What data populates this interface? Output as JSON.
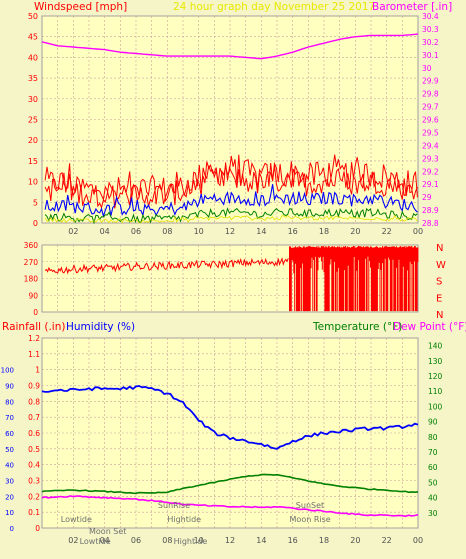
{
  "header": {
    "left_label": "Windspeed [mph]",
    "title": "24 hour graph day   November 25 2017",
    "right_label": "Barometer [.in]"
  },
  "colors": {
    "background": "#f5f5c8",
    "plot_bg": "#ffffc0",
    "grid": "#c8a0a0",
    "wind_red": "#ff0000",
    "wind_blue": "#0000ff",
    "wind_green": "#008000",
    "wind_yellow": "#e0e000",
    "barometer": "#ff00ff",
    "rain_axis": "#ff0000",
    "humidity_axis": "#0000ff",
    "temp_axis": "#008000",
    "dew_axis": "#ff00ff"
  },
  "chart_data": [
    {
      "type": "line",
      "name": "wind-barometer",
      "x": [
        0,
        1,
        2,
        3,
        4,
        5,
        6,
        7,
        8,
        9,
        10,
        11,
        12,
        13,
        14,
        15,
        16,
        17,
        18,
        19,
        20,
        21,
        22,
        23,
        24
      ],
      "xticks": [
        "02",
        "04",
        "06",
        "08",
        "10",
        "12",
        "14",
        "16",
        "18",
        "20",
        "22",
        "00"
      ],
      "xtick_hours": [
        2,
        4,
        6,
        8,
        10,
        12,
        14,
        16,
        18,
        20,
        22,
        24
      ],
      "ylim_left": [
        0,
        50
      ],
      "yticks_left": [
        0,
        5,
        10,
        15,
        20,
        25,
        30,
        35,
        40,
        45,
        50
      ],
      "ylim_right": [
        28.8,
        30.4
      ],
      "yticks_right": [
        "28.8",
        "28.9",
        "29",
        "29.1",
        "29.2",
        "29.3",
        "29.4",
        "29.5",
        "29.6",
        "29.7",
        "29.8",
        "29.9",
        "30",
        "30.1",
        "30.2",
        "30.3",
        "30.4"
      ],
      "series": [
        {
          "key": "gust",
          "color": "#ff0000",
          "values": [
            9,
            10,
            9,
            8,
            7,
            8,
            8,
            8,
            8,
            9,
            11,
            12,
            13,
            12,
            11,
            12,
            12,
            11,
            12,
            12,
            11,
            12,
            11,
            10,
            9
          ]
        },
        {
          "key": "average",
          "color": "#0000ff",
          "values": [
            4,
            4,
            4,
            3.5,
            3,
            3.5,
            3.5,
            3,
            3.5,
            3.5,
            5.5,
            6,
            6,
            6,
            5.5,
            6,
            6,
            5.5,
            6,
            6,
            5.5,
            6,
            5,
            4.5,
            4
          ]
        },
        {
          "key": "low",
          "color": "#008000",
          "values": [
            1.5,
            1.5,
            1.2,
            1,
            1,
            1.2,
            1,
            1,
            1,
            1.2,
            2,
            2.5,
            2.5,
            2.5,
            2,
            2.5,
            2.5,
            2.2,
            2.5,
            2.5,
            2.2,
            2.5,
            2,
            1.8,
            1.5
          ]
        },
        {
          "key": "barometer",
          "color": "#ff00ff",
          "values": [
            30.2,
            30.17,
            30.16,
            30.15,
            30.14,
            30.12,
            30.11,
            30.1,
            30.09,
            30.09,
            30.09,
            30.09,
            30.09,
            30.08,
            30.07,
            30.09,
            30.12,
            30.16,
            30.19,
            30.22,
            30.24,
            30.25,
            30.25,
            30.25,
            30.26
          ]
        }
      ]
    },
    {
      "type": "line",
      "name": "wind-direction",
      "ylim": [
        0,
        360
      ],
      "yticks": [
        0,
        90,
        180,
        270,
        360
      ],
      "compass": [
        "N",
        "W",
        "S",
        "E",
        "N"
      ],
      "series": [
        {
          "key": "direction",
          "color": "#ff0000",
          "values": [
            210,
            225,
            230,
            235,
            235,
            240,
            245,
            245,
            250,
            250,
            255,
            255,
            260,
            265,
            265,
            270,
            280,
            285,
            280,
            280,
            280,
            285,
            280,
            280,
            280
          ]
        }
      ]
    },
    {
      "type": "line",
      "name": "rain-humidity-temp",
      "left_label_1": "Rainfall (.in)",
      "left_label_2": "Humidity (%)",
      "right_label_1": "Temperature (°F)",
      "right_label_2": "Dew Point (°F)",
      "ylim_left": [
        0,
        1.2
      ],
      "yticks_left": [
        "0",
        "0.1",
        "0.2",
        "0.3",
        "0.4",
        "0.5",
        "0.6",
        "0.7",
        "0.8",
        "0.9",
        "1",
        "1.1",
        "1.2"
      ],
      "humidity_axis": [
        0,
        100
      ],
      "yticks_humidity": [
        0,
        10,
        20,
        30,
        40,
        50,
        60,
        70,
        80,
        90,
        100
      ],
      "ylim_right": [
        20,
        145
      ],
      "yticks_right": [
        30,
        40,
        50,
        60,
        70,
        80,
        90,
        100,
        110,
        120,
        130,
        140
      ],
      "series": [
        {
          "key": "humidity",
          "color": "#0000ff",
          "values": [
            86,
            87,
            87,
            88,
            88,
            88,
            89,
            88,
            85,
            79,
            68,
            60,
            57,
            55,
            53,
            50,
            55,
            58,
            60,
            61,
            62,
            63,
            63,
            64,
            66
          ]
        },
        {
          "key": "temperature",
          "color": "#008000",
          "values": [
            44,
            44.5,
            45,
            44.5,
            44,
            43.5,
            43,
            43,
            43.5,
            46,
            48,
            50,
            52,
            54,
            55,
            55,
            53,
            51,
            49,
            47.5,
            46.5,
            45.5,
            45,
            44,
            43.5
          ]
        },
        {
          "key": "dew_point",
          "color": "#ff00ff",
          "values": [
            40,
            40.5,
            41,
            40.5,
            40,
            39.5,
            39,
            38,
            37,
            35.5,
            35,
            34.5,
            34,
            34,
            33.5,
            34,
            33,
            32,
            31,
            30,
            29,
            28.5,
            28.5,
            28,
            28.5
          ]
        }
      ],
      "annotations": [
        {
          "text": "Lowtide",
          "hour": 1.2,
          "level": "upper",
          "color": "#707070"
        },
        {
          "text": "Moon Set",
          "hour": 3.0,
          "level": "middle",
          "color": "#707070"
        },
        {
          "text": "SunRise",
          "hour": 7.4,
          "level": "top",
          "color": "#707070"
        },
        {
          "text": "Hightide",
          "hour": 8.0,
          "level": "upper",
          "color": "#707070"
        },
        {
          "text": "SunSet",
          "hour": 16.2,
          "level": "top",
          "color": "#707070"
        },
        {
          "text": "Moon Rise",
          "hour": 15.8,
          "level": "upper",
          "color": "#707070"
        },
        {
          "text": "Lowtide",
          "hour": 2.4,
          "level": "bottom",
          "color": "#707070"
        },
        {
          "text": "Hightide",
          "hour": 8.4,
          "level": "bottom",
          "color": "#707070"
        }
      ]
    }
  ]
}
